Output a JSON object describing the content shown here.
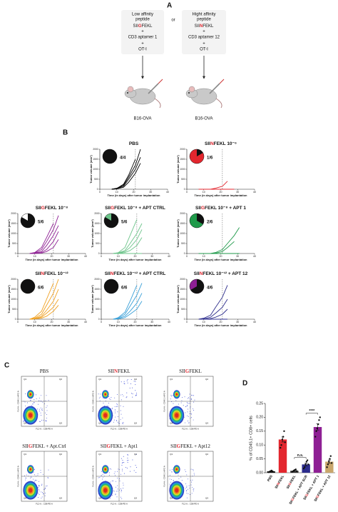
{
  "panel_labels": [
    "A",
    "B",
    "C",
    "D"
  ],
  "schematic": {
    "left": [
      "Low affinity",
      "peptide",
      [
        "SII",
        {
          "text": "G",
          "color": "#e3262e"
        },
        "FEKL"
      ],
      "+",
      "CD3 aptamer 1",
      "+",
      "OT-I"
    ],
    "or": "or",
    "right": [
      "Hight affinity",
      "peptide",
      [
        "SII",
        {
          "text": "N",
          "color": "#e3262e"
        },
        "FEKL"
      ],
      "+",
      "CD3 aptamer 12",
      "+",
      "OT-I"
    ],
    "tumor": [
      "B16-OVA",
      "B16-OVA"
    ]
  },
  "chart_data": [
    {
      "type": "line",
      "title": [
        "PBS"
      ],
      "x_label": "Time (in days) after tumor implantation",
      "y_label": "Tumor volume (mm³)",
      "xlim": [
        0,
        40
      ],
      "xticks": [
        0,
        10,
        20,
        30,
        40
      ],
      "ylim": [
        0,
        2000
      ],
      "yticks": [
        0,
        500,
        1000,
        1500,
        2000
      ],
      "vline": 21,
      "x": [
        7,
        10,
        14,
        17,
        21,
        24,
        28,
        31
      ],
      "color": "#000000",
      "pie": {
        "part": 4,
        "whole": 4,
        "label": "4/4",
        "color": "#ffffff"
      },
      "series": [
        {
          "values": [
            0,
            50,
            200,
            600,
            1200,
            2000,
            null,
            null
          ]
        },
        {
          "values": [
            0,
            30,
            150,
            500,
            1000,
            1600,
            null,
            null
          ]
        },
        {
          "values": [
            0,
            20,
            100,
            350,
            800,
            1300,
            null,
            null
          ]
        },
        {
          "values": [
            0,
            40,
            250,
            700,
            1500,
            null,
            null,
            null
          ]
        }
      ]
    },
    {
      "type": "line",
      "title": [
        "SII",
        {
          "text": "N",
          "color": "#e3262e"
        },
        "FEKL 10⁻⁶"
      ],
      "x_label": "Time (in days) after tumor implantation",
      "y_label": "Tumor volume (mm³)",
      "xlim": [
        0,
        40
      ],
      "xticks": [
        0,
        10,
        20,
        30,
        40
      ],
      "ylim": [
        0,
        2000
      ],
      "yticks": [
        0,
        500,
        1000,
        1500,
        2000
      ],
      "vline": 21,
      "x": [
        7,
        10,
        14,
        17,
        21,
        24,
        28,
        31
      ],
      "color": "#e3262e",
      "pie": {
        "part": 1,
        "whole": 6,
        "label": "1/6",
        "color": "#e3262e"
      },
      "series": [
        {
          "values": [
            0,
            0,
            0,
            50,
            150,
            400,
            null,
            null
          ]
        },
        {
          "values": [
            0,
            0,
            0,
            0,
            0,
            0,
            null,
            null
          ]
        },
        {
          "values": [
            0,
            0,
            0,
            0,
            0,
            0,
            0,
            null
          ]
        }
      ]
    },
    {
      "type": "line",
      "title": [
        "SII",
        {
          "text": "G",
          "color": "#e3262e"
        },
        "FEKL 10⁻⁸"
      ],
      "x_label": "Time (in days) after tumor implantation",
      "y_label": "Tumor volume (mm³)",
      "xlim": [
        0,
        40
      ],
      "xticks": [
        0,
        10,
        20,
        30,
        40
      ],
      "ylim": [
        0,
        2000
      ],
      "yticks": [
        0,
        500,
        1000,
        1500,
        2000
      ],
      "vline": 21,
      "x": [
        7,
        10,
        14,
        17,
        21,
        24,
        28,
        31
      ],
      "color": "#8e1f94",
      "pie": {
        "part": 5,
        "whole": 6,
        "label": "5/6",
        "color": "#ffffff"
      },
      "series": [
        {
          "values": [
            0,
            50,
            300,
            800,
            1500,
            null,
            null,
            null
          ]
        },
        {
          "values": [
            0,
            30,
            200,
            600,
            1200,
            1900,
            null,
            null
          ]
        },
        {
          "values": [
            0,
            20,
            100,
            400,
            900,
            1400,
            null,
            null
          ]
        },
        {
          "values": [
            0,
            10,
            50,
            200,
            600,
            1100,
            null,
            null
          ]
        },
        {
          "values": [
            0,
            0,
            20,
            100,
            300,
            700,
            null,
            null
          ]
        }
      ]
    },
    {
      "type": "line",
      "title": [
        "SII",
        {
          "text": "G",
          "color": "#e3262e"
        },
        "FEKL 10⁻⁸ + APT CTRL"
      ],
      "x_label": "Time (in days) after tumor implantation",
      "y_label": "Tumor volume (mm³)",
      "xlim": [
        0,
        40
      ],
      "xticks": [
        0,
        10,
        20,
        30,
        40
      ],
      "ylim": [
        0,
        2000
      ],
      "yticks": [
        0,
        500,
        1000,
        1500,
        2000
      ],
      "vline": 21,
      "x": [
        7,
        10,
        14,
        17,
        21,
        24,
        28,
        31
      ],
      "color": "#6cc48a",
      "pie": {
        "part": 5,
        "whole": 6,
        "label": "5/6",
        "color": "#6cc48a"
      },
      "series": [
        {
          "values": [
            0,
            40,
            300,
            900,
            1700,
            null,
            null,
            null
          ]
        },
        {
          "values": [
            0,
            30,
            150,
            500,
            1000,
            1500,
            null,
            null
          ]
        },
        {
          "values": [
            0,
            20,
            100,
            300,
            700,
            1200,
            null,
            null
          ]
        },
        {
          "values": [
            0,
            10,
            50,
            150,
            400,
            800,
            null,
            null
          ]
        },
        {
          "values": [
            0,
            0,
            0,
            0,
            0,
            0,
            null,
            null
          ]
        }
      ]
    },
    {
      "type": "line",
      "title": [
        "SII",
        {
          "text": "G",
          "color": "#e3262e"
        },
        "FEKL 10⁻⁸ + APT 1"
      ],
      "x_label": "Time (in days) after tumor implantation",
      "y_label": "Tumor volume (mm³)",
      "xlim": [
        0,
        40
      ],
      "xticks": [
        0,
        10,
        20,
        30,
        40
      ],
      "ylim": [
        0,
        2000
      ],
      "yticks": [
        0,
        500,
        1000,
        1500,
        2000
      ],
      "vline": 21,
      "x": [
        7,
        10,
        14,
        17,
        21,
        24,
        28,
        31
      ],
      "color": "#1f9a4a",
      "pie": {
        "part": 2,
        "whole": 6,
        "label": "2/6",
        "color": "#1f9a4a"
      },
      "series": [
        {
          "values": [
            0,
            0,
            0,
            50,
            200,
            500,
            900,
            1300
          ]
        },
        {
          "values": [
            0,
            0,
            0,
            20,
            100,
            300,
            600,
            null
          ]
        },
        {
          "values": [
            0,
            0,
            0,
            0,
            0,
            0,
            0,
            0
          ]
        }
      ]
    },
    {
      "type": "line",
      "title": [
        "SII",
        {
          "text": "N",
          "color": "#e3262e"
        },
        "FEKL 10⁻¹²"
      ],
      "x_label": "Time (in days) after tumor implantation",
      "y_label": "Tumor volume (mm³)",
      "xlim": [
        0,
        40
      ],
      "xticks": [
        0,
        10,
        20,
        30,
        40
      ],
      "ylim": [
        0,
        2000
      ],
      "yticks": [
        0,
        500,
        1000,
        1500,
        2000
      ],
      "vline": 21,
      "x": [
        7,
        10,
        14,
        17,
        21,
        24,
        28,
        31
      ],
      "color": "#f0a020",
      "pie": {
        "part": 6,
        "whole": 6,
        "label": "6/6",
        "color": "#f0a020"
      },
      "series": [
        {
          "values": [
            0,
            100,
            400,
            1000,
            1800,
            null,
            null,
            null
          ]
        },
        {
          "values": [
            0,
            50,
            250,
            700,
            1300,
            2000,
            null,
            null
          ]
        },
        {
          "values": [
            0,
            30,
            150,
            450,
            900,
            1500,
            null,
            null
          ]
        },
        {
          "values": [
            0,
            20,
            100,
            300,
            600,
            1000,
            null,
            null
          ]
        },
        {
          "values": [
            0,
            10,
            50,
            150,
            400,
            700,
            null,
            null
          ]
        }
      ]
    },
    {
      "type": "line",
      "title": [
        "SII",
        {
          "text": "N",
          "color": "#e3262e"
        },
        "FEKL 10⁻¹² + APT CTRL"
      ],
      "x_label": "Time (in days) after tumor implantation",
      "y_label": "Tumor volume (mm³)",
      "xlim": [
        0,
        40
      ],
      "xticks": [
        0,
        10,
        20,
        30,
        40
      ],
      "ylim": [
        0,
        2000
      ],
      "yticks": [
        0,
        500,
        1000,
        1500,
        2000
      ],
      "vline": 21,
      "x": [
        7,
        10,
        14,
        17,
        21,
        24,
        28,
        31
      ],
      "color": "#3aa0d8",
      "pie": {
        "part": 6,
        "whole": 6,
        "label": "6/6",
        "color": "#3aa0d8"
      },
      "series": [
        {
          "values": [
            0,
            80,
            350,
            900,
            1700,
            null,
            null,
            null
          ]
        },
        {
          "values": [
            0,
            50,
            250,
            650,
            1200,
            1800,
            null,
            null
          ]
        },
        {
          "values": [
            0,
            30,
            150,
            400,
            800,
            1300,
            null,
            null
          ]
        },
        {
          "values": [
            0,
            10,
            80,
            250,
            500,
            900,
            null,
            null
          ]
        }
      ]
    },
    {
      "type": "line",
      "title": [
        "SII",
        {
          "text": "N",
          "color": "#e3262e"
        },
        "FEKL 10⁻¹² + APT 12"
      ],
      "x_label": "Time (in days) after tumor implantation",
      "y_label": "Tumor volume (mm³)",
      "xlim": [
        0,
        40
      ],
      "xticks": [
        0,
        10,
        20,
        30,
        40
      ],
      "ylim": [
        0,
        2000
      ],
      "yticks": [
        0,
        500,
        1000,
        1500,
        2000
      ],
      "vline": 21,
      "x": [
        7,
        10,
        14,
        17,
        21,
        24,
        28,
        31
      ],
      "color": "#2c2c8c",
      "pie": {
        "part": 4,
        "whole": 6,
        "label": "4/6",
        "color": "#8e1f94"
      },
      "series": [
        {
          "values": [
            0,
            50,
            200,
            600,
            1100,
            1700,
            null,
            null
          ]
        },
        {
          "values": [
            0,
            20,
            100,
            300,
            600,
            1000,
            null,
            null
          ]
        },
        {
          "values": [
            0,
            0,
            30,
            100,
            250,
            500,
            null,
            null
          ]
        },
        {
          "values": [
            0,
            0,
            0,
            0,
            0,
            0,
            null,
            null
          ]
        }
      ]
    },
    {
      "type": "bar",
      "y_label": "% of CD45.1+ CD8+ cells",
      "categories": [
        [
          "PBS"
        ],
        [
          "SII",
          {
            "text": "N",
            "color": "#e3262e"
          },
          "FEKL"
        ],
        [
          "SII",
          {
            "text": "G",
            "color": "#e3262e"
          },
          "FEKL"
        ],
        [
          "SII",
          {
            "text": "G",
            "color": "#e3262e"
          },
          "FEKL + APT SCR"
        ],
        [
          "SII",
          {
            "text": "G",
            "color": "#e3262e"
          },
          "FEKL + APT 1"
        ],
        [
          "SII",
          {
            "text": "G",
            "color": "#e3262e"
          },
          "FEKL + APT 12"
        ]
      ],
      "values": [
        0.005,
        0.12,
        0.007,
        0.03,
        0.165,
        0.04
      ],
      "errors": [
        0.001,
        0.009,
        0.0015,
        0.005,
        0.011,
        0.006
      ],
      "points": [
        [
          0.002,
          0.004,
          0.006,
          0.008,
          0.005,
          0.003
        ],
        [
          0.09,
          0.1,
          0.12,
          0.13,
          0.15,
          0.11
        ],
        [
          0.003,
          0.005,
          0.008,
          0.01,
          0.012,
          0.006
        ],
        [
          0.015,
          0.02,
          0.03,
          0.04,
          0.045,
          0.03
        ],
        [
          0.13,
          0.15,
          0.16,
          0.175,
          0.19,
          0.2
        ],
        [
          0.02,
          0.03,
          0.04,
          0.05,
          0.06,
          0.035
        ]
      ],
      "colors": [
        "#111111",
        "#e3262e",
        "#333333",
        "#2c2c8c",
        "#8e1f94",
        "#c9a66b"
      ],
      "ylim": [
        0,
        0.25
      ],
      "yticks": [
        {
          "value": 0,
          "label": "0.00"
        },
        {
          "value": 0.05,
          "label": "0.05"
        },
        {
          "value": 0.1,
          "label": "0.10"
        },
        {
          "value": 0.15,
          "label": "0.15"
        },
        {
          "value": 0.2,
          "label": "0.20"
        },
        {
          "value": 0.25,
          "label": "0.25"
        }
      ],
      "annotations": [
        "n.s.",
        "****"
      ]
    }
  ],
  "flow": {
    "x_label": "FL2-A :: CD8-PE-A",
    "y_label": "FL4-A :: CD45.1-APC-A",
    "quadrants": [
      "Q1",
      "Q2",
      "Q3",
      "Q4"
    ],
    "plots": [
      [
        "PBS"
      ],
      [
        "SII",
        {
          "text": "N",
          "color": "#e3262e"
        },
        "FEKL"
      ],
      [
        "SII",
        {
          "text": "G",
          "color": "#e3262e"
        },
        "FEKL"
      ],
      [
        "SII",
        {
          "text": "G",
          "color": "#e3262e"
        },
        "FEKL + Apt.Ctrl"
      ],
      [
        "SII",
        {
          "text": "G",
          "color": "#e3262e"
        },
        "FEKL + Apt1"
      ],
      [
        "SII",
        {
          "text": "G",
          "color": "#e3262e"
        },
        "FEKL + Apt12"
      ]
    ]
  }
}
